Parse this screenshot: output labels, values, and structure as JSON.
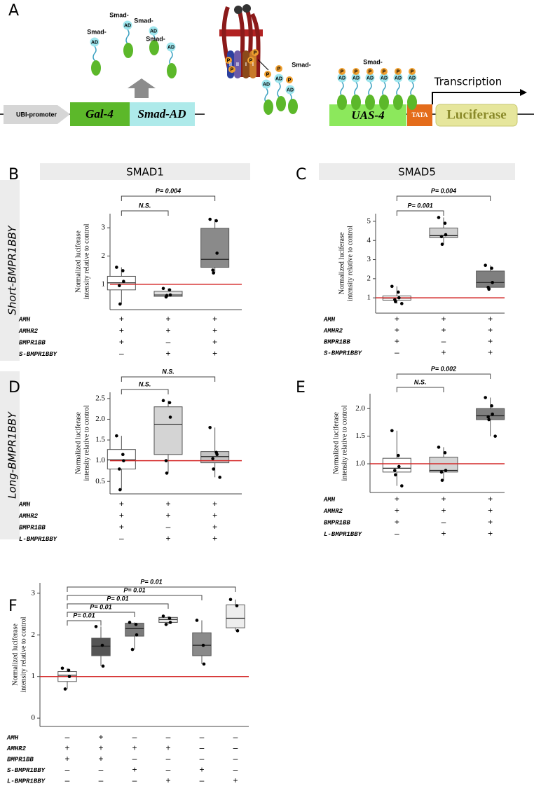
{
  "diagram": {
    "panel": "A",
    "promoter": "UBI-promoter",
    "gal4": "Gal-4",
    "smad_ad": "Smad-AD",
    "smad_labels": [
      "Smad-",
      "Smad-",
      "Smad-",
      "Smad-",
      "Smad-",
      "Smad-"
    ],
    "ad_labels": [
      "AD",
      "AD",
      "AD",
      "AD",
      "AD",
      "AD",
      "AD",
      "AD",
      "AD",
      "AD",
      "AD",
      "AD",
      "AD"
    ],
    "p_labels": [
      "P",
      "P",
      "P",
      "P",
      "P",
      "P",
      "P",
      "P",
      "P",
      "P",
      "P",
      "P",
      "P"
    ],
    "receptor_labels": [
      "II",
      "II",
      "I",
      "I"
    ],
    "transcription": "Transcription",
    "uas": "UAS-4",
    "tata": "TATA",
    "luciferase": "Luciferase"
  },
  "column_headers": [
    "SMAD1",
    "SMAD5"
  ],
  "row_labels": [
    "Short-BMPR1BBY",
    "Long-BMPR1BBY"
  ],
  "chart_data": [
    {
      "type": "box",
      "panel": "B",
      "ylim": [
        0.1,
        3.5
      ],
      "yticks": [
        1,
        2,
        3
      ],
      "ylabel": [
        "Normalized luciferase",
        "intensity relative to control"
      ],
      "reference_line": 1,
      "reference_color": "#d42a2a",
      "boxes": [
        {
          "color": "#ffffff",
          "whisker_low": 0.3,
          "q1": 0.8,
          "median": 1.05,
          "q3": 1.28,
          "whisker_high": 1.6,
          "points": [
            1.6,
            1.48,
            1.1,
            0.95,
            0.3
          ]
        },
        {
          "color": "#dcdcdc",
          "whisker_low": 0.55,
          "q1": 0.57,
          "median": 0.62,
          "q3": 0.75,
          "whisker_high": 0.85,
          "points": [
            0.85,
            0.8,
            0.62,
            0.55,
            0.6
          ]
        },
        {
          "color": "#8a8a8a",
          "whisker_low": 1.4,
          "q1": 1.6,
          "median": 1.88,
          "q3": 2.98,
          "whisker_high": 3.3,
          "points": [
            3.3,
            3.25,
            2.1,
            1.5,
            1.4
          ]
        }
      ],
      "brackets": [
        "N.S.",
        "P= 0.004"
      ],
      "conditions": [
        {
          "name": "AMH",
          "marks": [
            "+",
            "+",
            "+"
          ]
        },
        {
          "name": "AMHR2",
          "marks": [
            "+",
            "+",
            "+"
          ]
        },
        {
          "name": "BMPR1BB",
          "marks": [
            "+",
            "–",
            "+"
          ]
        },
        {
          "name": "S-BMPR1BBY",
          "marks": [
            "–",
            "+",
            "+"
          ]
        }
      ]
    },
    {
      "type": "box",
      "panel": "C",
      "ylim": [
        0.2,
        5.4
      ],
      "yticks": [
        1,
        2,
        3,
        4,
        5
      ],
      "ylabel": [
        "Normalized luciferase",
        "intensity relative to control"
      ],
      "reference_line": 1,
      "reference_color": "#d42a2a",
      "boxes": [
        {
          "color": "#ffffff",
          "whisker_low": 0.7,
          "q1": 0.88,
          "median": 0.98,
          "q3": 1.1,
          "whisker_high": 1.6,
          "points": [
            1.6,
            1.3,
            1.0,
            0.9,
            0.8,
            0.7
          ]
        },
        {
          "color": "#d0d0d0",
          "whisker_low": 3.8,
          "q1": 4.15,
          "median": 4.25,
          "q3": 4.65,
          "whisker_high": 5.2,
          "points": [
            5.2,
            4.9,
            4.3,
            4.2,
            3.8
          ]
        },
        {
          "color": "#7f7f7f",
          "whisker_low": 1.45,
          "q1": 1.55,
          "median": 1.8,
          "q3": 2.4,
          "whisker_high": 2.7,
          "points": [
            2.7,
            2.55,
            1.8,
            1.55,
            1.45
          ]
        }
      ],
      "brackets": [
        "P= 0.001",
        "P= 0.004"
      ],
      "conditions": [
        {
          "name": "AMH",
          "marks": [
            "+",
            "+",
            "+"
          ]
        },
        {
          "name": "AMHR2",
          "marks": [
            "+",
            "+",
            "+"
          ]
        },
        {
          "name": "BMPR1BB",
          "marks": [
            "+",
            "–",
            "+"
          ]
        },
        {
          "name": "S-BMPR1BBY",
          "marks": [
            "–",
            "+",
            "+"
          ]
        }
      ]
    },
    {
      "type": "box",
      "panel": "D",
      "ylim": [
        0.2,
        2.65
      ],
      "yticks": [
        0.5,
        {
          "value": 1,
          "label": "1.0"
        },
        1.5,
        {
          "value": 2,
          "label": "2.0"
        },
        2.5
      ],
      "ylabel": [
        "Normalized luciferase",
        "intensity relative to control"
      ],
      "reference_line": 1,
      "reference_color": "#d42a2a",
      "boxes": [
        {
          "color": "#ffffff",
          "whisker_low": 0.3,
          "q1": 0.8,
          "median": 1.02,
          "q3": 1.27,
          "whisker_high": 1.6,
          "points": [
            1.6,
            1.15,
            1.0,
            0.8,
            0.3
          ]
        },
        {
          "color": "#d4d4d4",
          "whisker_low": 0.7,
          "q1": 1.15,
          "median": 1.88,
          "q3": 2.3,
          "whisker_high": 2.45,
          "points": [
            2.45,
            2.4,
            2.05,
            1.0,
            0.7
          ]
        },
        {
          "color": "#c4c4c4",
          "whisker_low": 0.6,
          "q1": 0.95,
          "median": 1.1,
          "q3": 1.22,
          "whisker_high": 1.8,
          "points": [
            1.8,
            1.2,
            1.15,
            1.05,
            0.8,
            0.6
          ]
        }
      ],
      "brackets": [
        "N.S.",
        "N.S."
      ],
      "conditions": [
        {
          "name": "AMH",
          "marks": [
            "+",
            "+",
            "+"
          ]
        },
        {
          "name": "AMHR2",
          "marks": [
            "+",
            "+",
            "+"
          ]
        },
        {
          "name": "BMPR1BB",
          "marks": [
            "+",
            "–",
            "+"
          ]
        },
        {
          "name": "L-BMPR1BBY",
          "marks": [
            "–",
            "+",
            "+"
          ]
        }
      ]
    },
    {
      "type": "box",
      "panel": "E",
      "ylim": [
        0.48,
        2.27
      ],
      "yticks": [
        {
          "value": 1,
          "label": "1.0"
        },
        1.5,
        {
          "value": 2,
          "label": "2.0"
        }
      ],
      "ylabel": [
        "Normalized luciferase",
        "intensity relative to control"
      ],
      "reference_line": 1,
      "reference_color": "#d42a2a",
      "boxes": [
        {
          "color": "#ffffff",
          "whisker_low": 0.6,
          "q1": 0.85,
          "median": 0.92,
          "q3": 1.1,
          "whisker_high": 1.6,
          "points": [
            1.6,
            1.15,
            0.95,
            0.88,
            0.8,
            0.6
          ]
        },
        {
          "color": "#d4d4d4",
          "whisker_low": 0.7,
          "q1": 0.85,
          "median": 0.88,
          "q3": 1.12,
          "whisker_high": 1.3,
          "points": [
            1.3,
            1.2,
            0.88,
            0.85,
            0.7
          ]
        },
        {
          "color": "#7f7f7f",
          "whisker_low": 1.5,
          "q1": 1.8,
          "median": 1.87,
          "q3": 2.0,
          "whisker_high": 2.2,
          "points": [
            2.2,
            2.05,
            1.9,
            1.85,
            1.8,
            1.5
          ]
        }
      ],
      "brackets": [
        "N.S.",
        "P= 0.002"
      ],
      "conditions": [
        {
          "name": "AMH",
          "marks": [
            "+",
            "+",
            "+"
          ]
        },
        {
          "name": "AMHR2",
          "marks": [
            "+",
            "+",
            "+"
          ]
        },
        {
          "name": "BMPR1BB",
          "marks": [
            "+",
            "–",
            "+"
          ]
        },
        {
          "name": "L-BMPR1BBY",
          "marks": [
            "–",
            "+",
            "+"
          ]
        }
      ]
    },
    {
      "type": "box",
      "panel": "F",
      "ylim": [
        -0.2,
        3.25
      ],
      "yticks": [
        0,
        1,
        2,
        3
      ],
      "ylabel": [
        "Normalized luciferase",
        "intensity relative to control"
      ],
      "reference_line": 1,
      "reference_color": "#d42a2a",
      "boxes": [
        {
          "color": "#ffffff",
          "whisker_low": 0.7,
          "q1": 0.88,
          "median": 1.03,
          "q3": 1.12,
          "whisker_high": 1.2,
          "points": [
            1.2,
            1.15,
            1.0,
            0.7
          ]
        },
        {
          "color": "#555555",
          "whisker_low": 1.25,
          "q1": 1.5,
          "median": 1.73,
          "q3": 1.92,
          "whisker_high": 2.2,
          "points": [
            2.2,
            1.75,
            1.25
          ]
        },
        {
          "color": "#7a7a7a",
          "whisker_low": 1.65,
          "q1": 1.97,
          "median": 2.15,
          "q3": 2.28,
          "whisker_high": 2.3,
          "points": [
            2.3,
            2.25,
            2.0,
            1.65
          ]
        },
        {
          "color": "#e6e6e6",
          "whisker_low": 2.25,
          "q1": 2.3,
          "median": 2.37,
          "q3": 2.42,
          "whisker_high": 2.45,
          "points": [
            2.45,
            2.4,
            2.3,
            2.25
          ]
        },
        {
          "color": "#8a8a8a",
          "whisker_low": 1.3,
          "q1": 1.5,
          "median": 1.75,
          "q3": 2.05,
          "whisker_high": 2.35,
          "points": [
            2.35,
            1.75,
            1.3
          ]
        },
        {
          "color": "#eeeeee",
          "whisker_low": 2.1,
          "q1": 2.17,
          "median": 2.4,
          "q3": 2.72,
          "whisker_high": 2.85,
          "points": [
            2.85,
            2.7,
            2.1
          ]
        }
      ],
      "brackets": [
        "P= 0.01",
        "P= 0.01",
        "P= 0.01",
        "P= 0.01",
        "P= 0.01"
      ],
      "conditions": [
        {
          "name": "AMH",
          "marks": [
            "–",
            "+",
            "–",
            "–",
            "–",
            "–"
          ]
        },
        {
          "name": "AMHR2",
          "marks": [
            "+",
            "+",
            "+",
            "+",
            "–",
            "–"
          ]
        },
        {
          "name": "BMPR1BB",
          "marks": [
            "+",
            "+",
            "–",
            "–",
            "–",
            "–"
          ]
        },
        {
          "name": "S-BMPR1BBY",
          "marks": [
            "–",
            "–",
            "+",
            "–",
            "+",
            "–"
          ]
        },
        {
          "name": "L-BMPR1BBY",
          "marks": [
            "–",
            "–",
            "–",
            "+",
            "–",
            "+"
          ]
        }
      ]
    }
  ]
}
